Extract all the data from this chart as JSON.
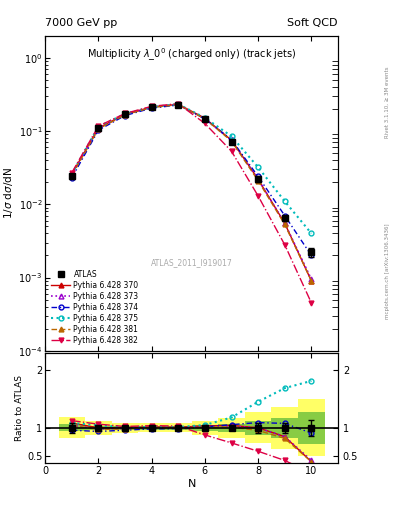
{
  "title_top_left": "7000 GeV pp",
  "title_top_right": "Soft QCD",
  "plot_title": "Multiplicity $\\lambda\\_0^0$ (charged only) (track jets)",
  "ylabel_main": "1/$\\sigma$ d$\\sigma$/dN",
  "ylabel_ratio": "Ratio to ATLAS",
  "xlabel": "N",
  "watermark": "ATLAS_2011_I919017",
  "right_label": "Rivet 3.1.10, ≥ 3M events",
  "right_label2": "mcplots.cern.ch [arXiv:1306.3436]",
  "N_values": [
    1,
    2,
    3,
    4,
    5,
    6,
    7,
    8,
    9,
    10
  ],
  "atlas_y": [
    0.024,
    0.11,
    0.17,
    0.21,
    0.23,
    0.145,
    0.072,
    0.022,
    0.0065,
    0.0022
  ],
  "atlas_yerr": [
    0.002,
    0.004,
    0.005,
    0.006,
    0.006,
    0.005,
    0.003,
    0.002,
    0.0006,
    0.0003
  ],
  "p370_y": [
    0.026,
    0.11,
    0.17,
    0.213,
    0.232,
    0.15,
    0.075,
    0.022,
    0.0055,
    0.0009
  ],
  "p373_y": [
    0.025,
    0.108,
    0.168,
    0.21,
    0.23,
    0.148,
    0.074,
    0.022,
    0.0055,
    0.00095
  ],
  "p374_y": [
    0.023,
    0.103,
    0.163,
    0.206,
    0.227,
    0.147,
    0.076,
    0.024,
    0.007,
    0.002
  ],
  "p375_y": [
    0.026,
    0.115,
    0.172,
    0.213,
    0.233,
    0.152,
    0.085,
    0.032,
    0.011,
    0.004
  ],
  "p381_y": [
    0.025,
    0.107,
    0.167,
    0.21,
    0.23,
    0.147,
    0.073,
    0.021,
    0.0053,
    0.0009
  ],
  "p382_y": [
    0.027,
    0.117,
    0.174,
    0.218,
    0.237,
    0.127,
    0.053,
    0.013,
    0.0028,
    0.00045
  ],
  "green_band_lo": [
    0.94,
    0.96,
    0.97,
    0.97,
    0.97,
    0.95,
    0.93,
    0.88,
    0.83,
    0.72
  ],
  "green_band_hi": [
    1.06,
    1.04,
    1.03,
    1.03,
    1.03,
    1.05,
    1.07,
    1.12,
    1.17,
    1.28
  ],
  "yellow_band_lo": [
    0.82,
    0.88,
    0.91,
    0.92,
    0.92,
    0.88,
    0.83,
    0.73,
    0.63,
    0.5
  ],
  "yellow_band_hi": [
    1.18,
    1.12,
    1.09,
    1.08,
    1.08,
    1.12,
    1.17,
    1.27,
    1.37,
    1.5
  ],
  "colors": {
    "atlas": "#000000",
    "p370": "#cc0000",
    "p373": "#9900cc",
    "p374": "#0000cc",
    "p375": "#00bbbb",
    "p381": "#bb6600",
    "p382": "#dd0044"
  },
  "xlim": [
    0,
    11
  ],
  "ylim_main": [
    0.0001,
    2.0
  ],
  "ylim_ratio": [
    0.38,
    2.3
  ]
}
